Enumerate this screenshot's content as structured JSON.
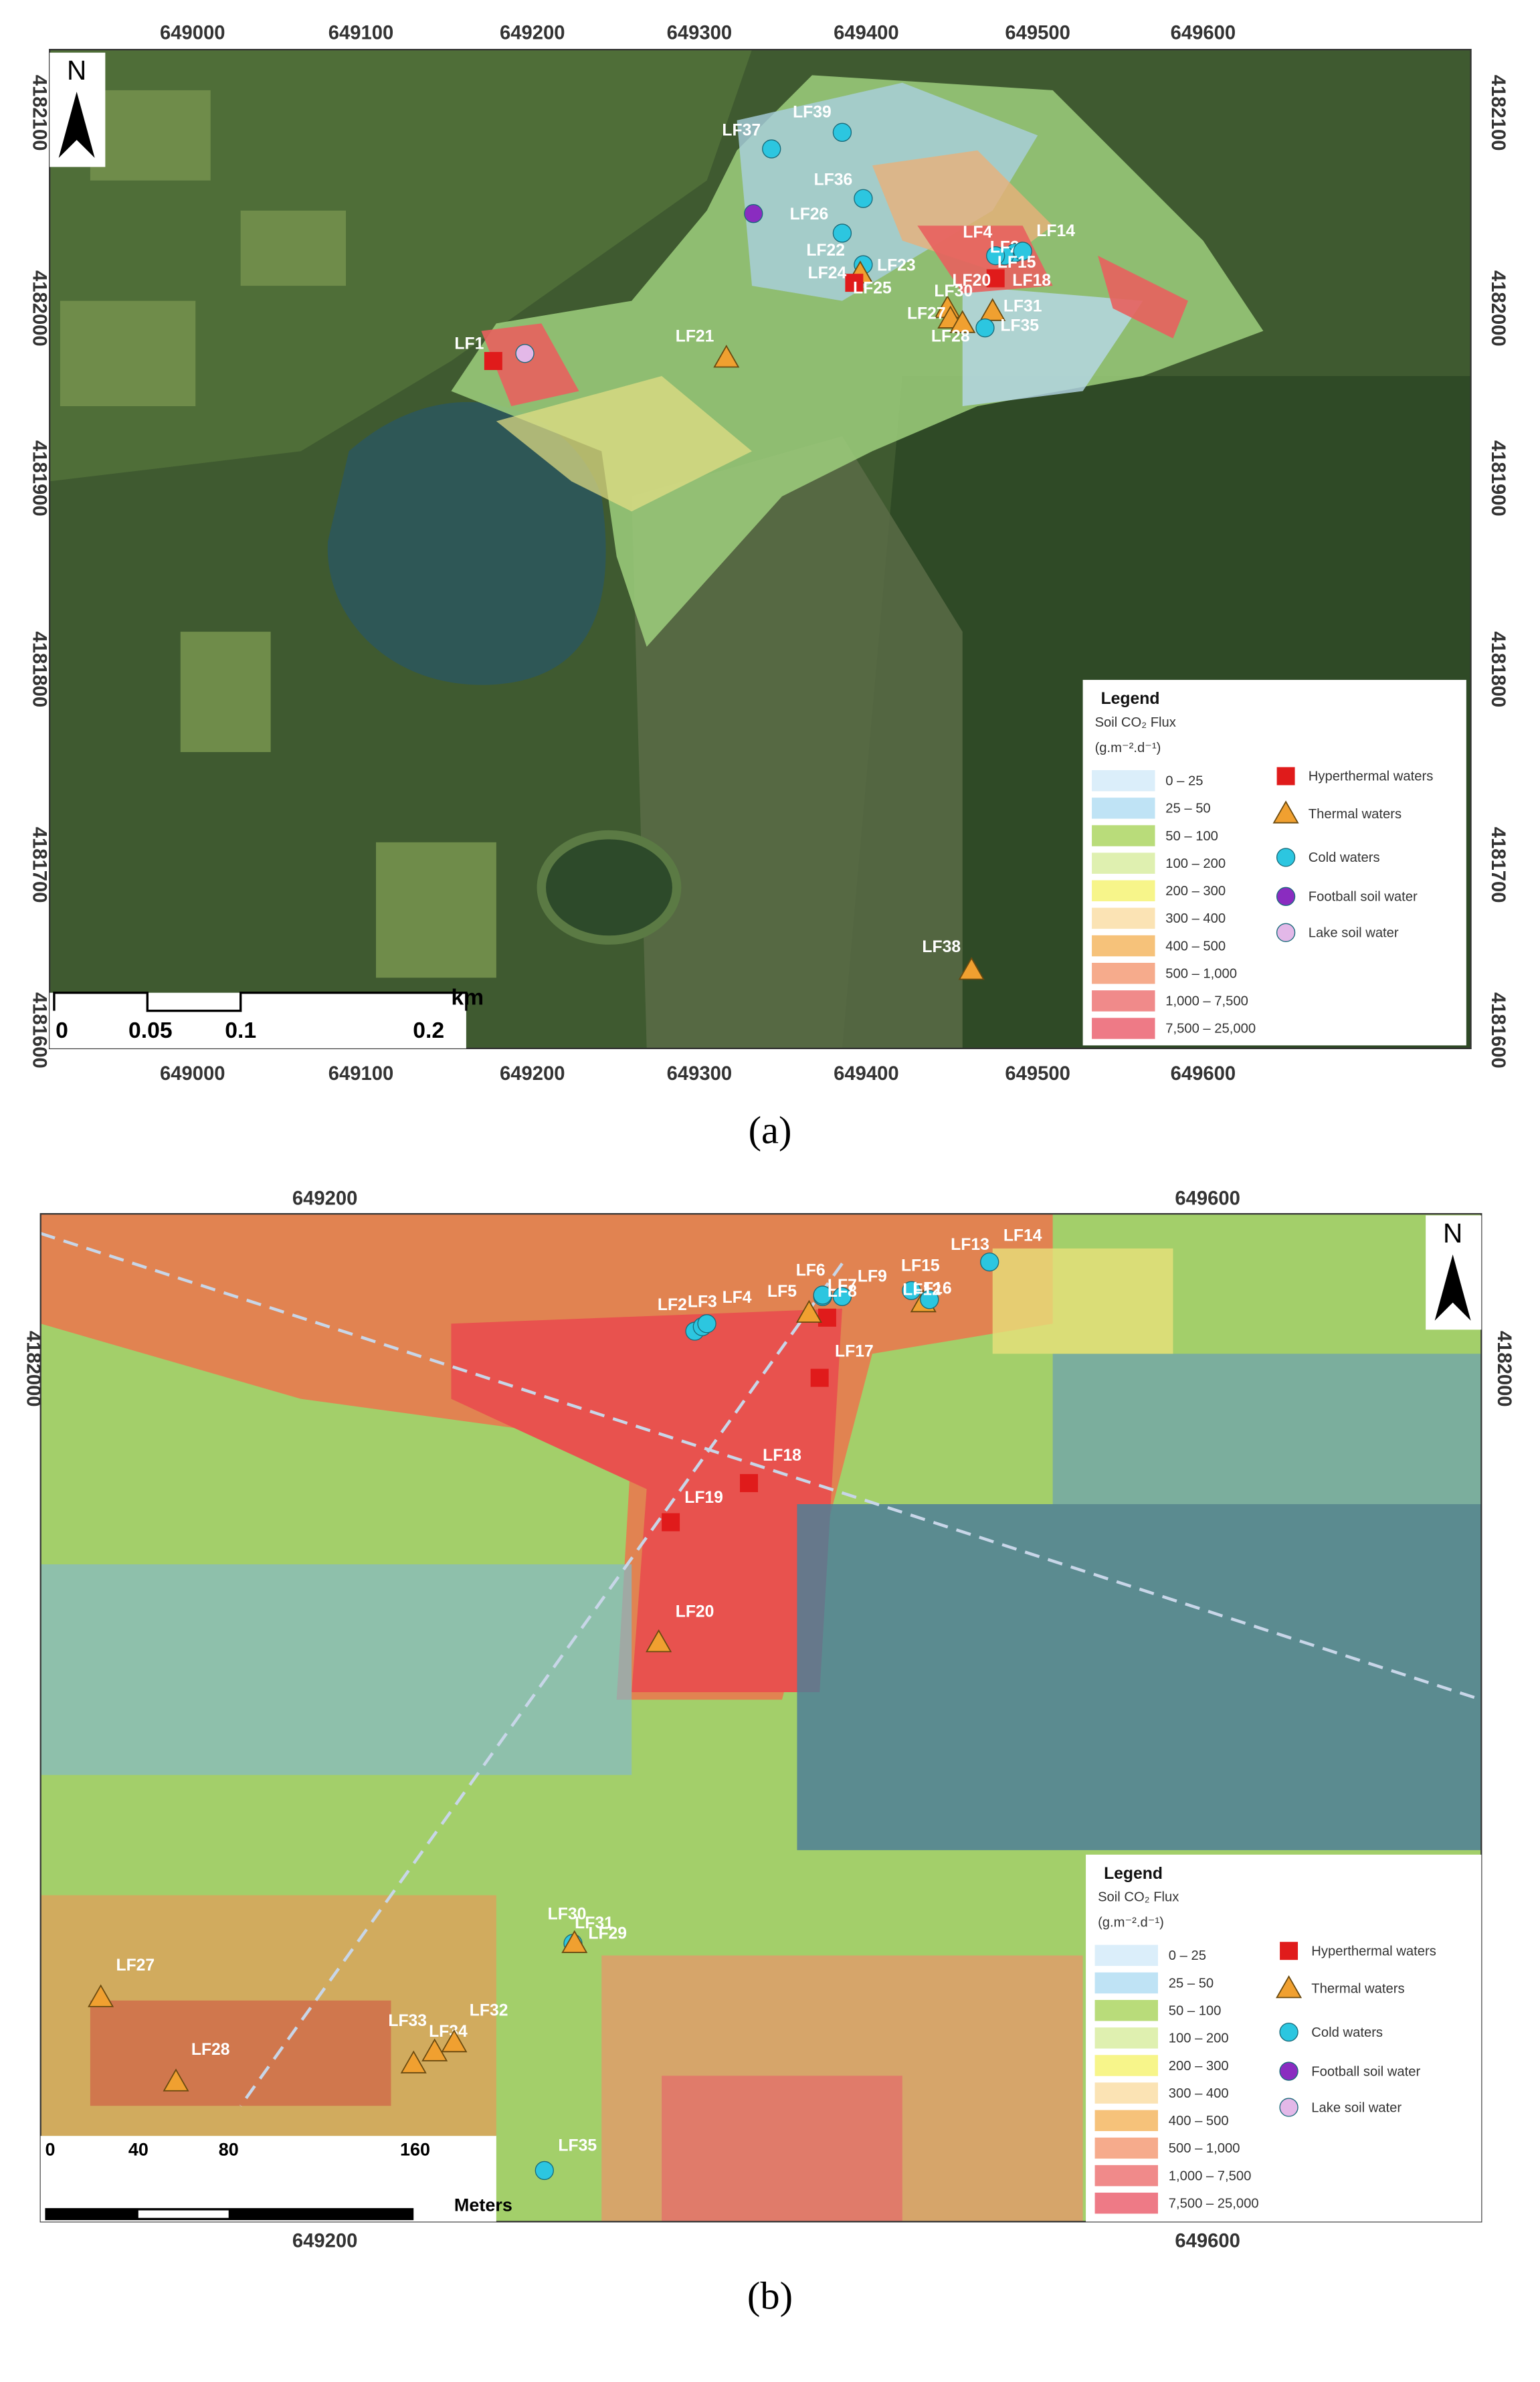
{
  "panels": [
    {
      "caption": "(a)",
      "x_ticks": [
        649000,
        649100,
        649200,
        649300,
        649400,
        649500,
        649600
      ],
      "y_ticks": [
        4182100,
        4182000,
        4181900,
        4181800,
        4181700,
        4181600
      ],
      "north": "N",
      "scale_bar": {
        "unit": "km",
        "labels": [
          "0",
          "0.05",
          "0.1",
          "0.2"
        ]
      },
      "sites": [
        "LF1",
        "LF37",
        "LF39",
        "LF36",
        "LF26",
        "LF22",
        "LF23",
        "LF24",
        "LF25",
        "LF4",
        "LF2",
        "LF14",
        "LF15",
        "LF18",
        "LF20",
        "LF30",
        "LF27",
        "LF31",
        "LF28",
        "LF35",
        "LF21",
        "LF38"
      ],
      "legend": {
        "title": "Legend",
        "flux_title": "Soil CO₂ Flux",
        "flux_unit": "(g.m⁻².d⁻¹)",
        "classes": [
          {
            "label": "0 – 25",
            "color": "#dbeefa"
          },
          {
            "label": "25 – 50",
            "color": "#bfe3f5"
          },
          {
            "label": "50 – 100",
            "color": "#b9dc7a"
          },
          {
            "label": "100 – 200",
            "color": "#dff0b0"
          },
          {
            "label": "200 – 300",
            "color": "#f7f58a"
          },
          {
            "label": "300 – 400",
            "color": "#fbe3b4"
          },
          {
            "label": "400 – 500",
            "color": "#f6c27a"
          },
          {
            "label": "500 – 1,000",
            "color": "#f6ab8c"
          },
          {
            "label": "1,000 – 7,500",
            "color": "#f08a8a"
          },
          {
            "label": "7,500 – 25,000",
            "color": "#ee7a86"
          }
        ],
        "points": [
          {
            "label": "Hyperthermal waters",
            "color": "#e01b1b"
          },
          {
            "label": "Thermal waters",
            "color": "#f0a030"
          },
          {
            "label": "Cold waters",
            "color": "#2cc6e0"
          },
          {
            "label": "Football soil water",
            "color": "#8a2cc0"
          },
          {
            "label": "Lake soil water",
            "color": "#e3b8e8"
          }
        ]
      }
    },
    {
      "caption": "(b)",
      "x_ticks": [
        649200,
        649600
      ],
      "y_ticks": [
        4182000
      ],
      "north": "N",
      "scale_bar": {
        "unit": "Meters",
        "labels": [
          "0",
          "40",
          "80",
          "160"
        ]
      },
      "sites": [
        "LF2",
        "LF3",
        "LF4",
        "LF5",
        "LF6",
        "LF7",
        "LF8",
        "LF9",
        "LF15",
        "LF16",
        "LF12",
        "LF13",
        "LF14",
        "LF17",
        "LF18",
        "LF19",
        "LF20",
        "LF30",
        "LF31",
        "LF29",
        "LF27",
        "LF28",
        "LF33",
        "LF34",
        "LF32",
        "LF35"
      ],
      "legend": {
        "title": "Legend",
        "flux_title": "Soil CO₂ Flux",
        "flux_unit": "(g.m⁻².d⁻¹)",
        "classes": [
          {
            "label": "0 – 25",
            "color": "#dbeefa"
          },
          {
            "label": "25 – 50",
            "color": "#bfe3f5"
          },
          {
            "label": "50 – 100",
            "color": "#b9dc7a"
          },
          {
            "label": "100 – 200",
            "color": "#dff0b0"
          },
          {
            "label": "200 – 300",
            "color": "#f7f58a"
          },
          {
            "label": "300 – 400",
            "color": "#fbe3b4"
          },
          {
            "label": "400 – 500",
            "color": "#f6c27a"
          },
          {
            "label": "500 – 1,000",
            "color": "#f6ab8c"
          },
          {
            "label": "1,000 – 7,500",
            "color": "#f08a8a"
          },
          {
            "label": "7,500 – 25,000",
            "color": "#ee7a86"
          }
        ],
        "points": [
          {
            "label": "Hyperthermal waters",
            "color": "#e01b1b"
          },
          {
            "label": "Thermal waters",
            "color": "#f0a030"
          },
          {
            "label": "Cold waters",
            "color": "#2cc6e0"
          },
          {
            "label": "Football soil water",
            "color": "#8a2cc0"
          },
          {
            "label": "Lake soil water",
            "color": "#e3b8e8"
          }
        ]
      }
    }
  ]
}
